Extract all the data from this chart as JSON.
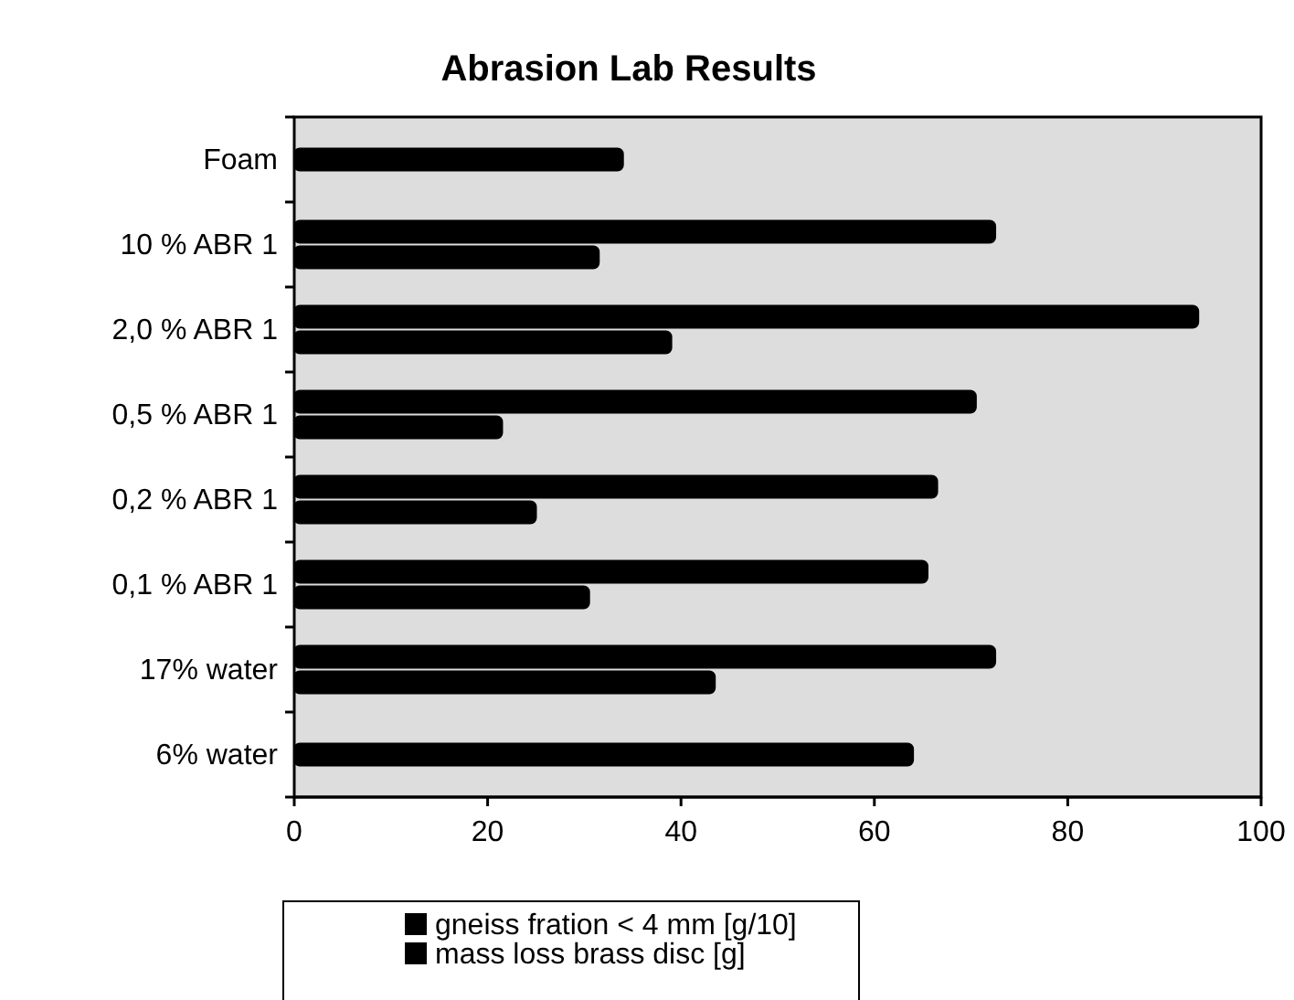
{
  "chart_data": {
    "type": "bar",
    "orientation": "horizontal",
    "title": "Abrasion Lab Results",
    "categories": [
      "Foam",
      "10 % ABR 1",
      "2,0 % ABR 1",
      "0,5 % ABR 1",
      "0,2 % ABR 1",
      "0,1 % ABR 1",
      "17% water",
      "6% water"
    ],
    "series": [
      {
        "name": "gneiss fration < 4 mm [g/10]",
        "color": "#000000",
        "values": [
          null,
          72.5,
          93.5,
          70.5,
          66.5,
          65.5,
          72.5,
          64
        ]
      },
      {
        "name": "mass loss brass disc [g]",
        "color": "#000000",
        "values": [
          34,
          31.5,
          39,
          21.5,
          25,
          30.5,
          43.5,
          null
        ]
      }
    ],
    "xlim": [
      0,
      100
    ],
    "xticks": [
      0,
      20,
      40,
      60,
      80,
      100
    ],
    "grid": false,
    "legend": "bottom"
  }
}
